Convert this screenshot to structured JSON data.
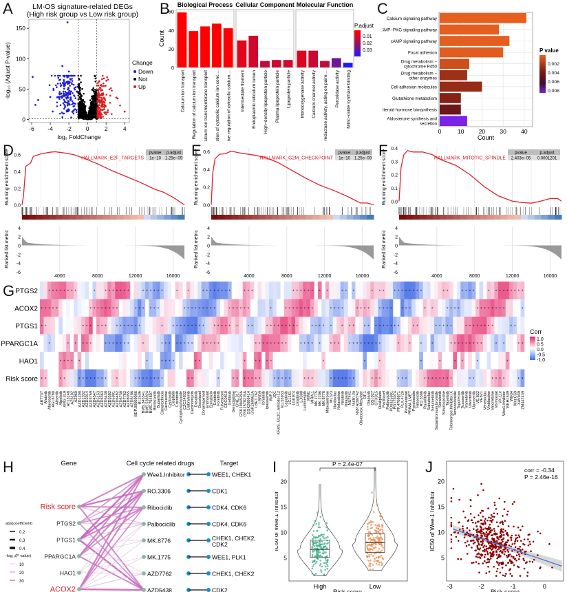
{
  "panel_labels": [
    "A",
    "B",
    "C",
    "D",
    "E",
    "F",
    "G",
    "H",
    "I",
    "J"
  ],
  "chart_data": [
    {
      "id": "A",
      "type": "scatter",
      "title": "LM-OS signature-related DEGs",
      "subtitle": "(High risk group vs Low risk group)",
      "xlabel": "log₂ FoldChange",
      "ylabel": "-log₁₀ (Adjust P-value)",
      "xlim": [
        -6.3,
        4.5
      ],
      "ylim": [
        -5,
        165
      ],
      "xticks": [
        -6,
        -4,
        -2,
        0,
        2,
        4
      ],
      "yticks": [
        0,
        50,
        100,
        150
      ],
      "thresholds": {
        "fc": [
          -1,
          1
        ],
        "p": 1.3
      },
      "legend": {
        "title": "Change",
        "position": "right",
        "entries": [
          {
            "label": "Down",
            "color": "#1f1fd6"
          },
          {
            "label": "Not",
            "color": "#000000"
          },
          {
            "label": "Up",
            "color": "#e01b1b"
          }
        ]
      },
      "outliers": [
        [
          -2.15,
          160
        ],
        [
          -2.7,
          88
        ],
        [
          -2.0,
          79
        ],
        [
          -5.9,
          70
        ],
        [
          -5.6,
          24
        ],
        [
          -5.3,
          32
        ],
        [
          -4.0,
          37
        ],
        [
          0.5,
          49
        ],
        [
          3.1,
          36
        ],
        [
          4.0,
          13
        ]
      ]
    },
    {
      "id": "B",
      "type": "bar",
      "ylabel": "Count",
      "ylim": [
        0,
        62
      ],
      "yticks": [
        0,
        20,
        40,
        60
      ],
      "legend": {
        "title": "P.adjust",
        "ticks": [
          "0.01",
          "0.02",
          "0.03"
        ],
        "low_color": "#ff0000",
        "high_color": "#1a1aff"
      },
      "facets": [
        {
          "name": "Biological Process",
          "categories": [
            "Calcium ion transport",
            "Regulation of calcium ion transport",
            "Calcium ion transmembrane transport",
            "Regulation of cytosolic calcium ion concentration",
            "Positive regulation of cytosolic calcium ion concentration"
          ],
          "values": [
            59,
            39,
            44,
            47,
            42
          ],
          "padj": [
            0.0005,
            0.0008,
            0.0006,
            0.0005,
            0.0007
          ]
        },
        {
          "name": "Cellular Component",
          "categories": [
            "Intermediate filament",
            "Endoplasmic reticulum lumen",
            "High−density lipoprotein particle",
            "Plasma lipoprotein particle",
            "Lipoprotein particle"
          ],
          "values": [
            29,
            34,
            7,
            8,
            8
          ],
          "padj": [
            0.006,
            0.009,
            0.012,
            0.009,
            0.009
          ]
        },
        {
          "name": "Molecular Function",
          "categories": [
            "Monooxygenase activity",
            "Calcium channel activity",
            "Oxidoreductase activity, acting on paired donors, with incorporation of molecular oxygen",
            "Peroxidase activity",
            "Nitric−oxide synthase binding"
          ],
          "values": [
            18,
            18,
            7,
            10,
            5
          ],
          "padj": [
            0.007,
            0.01,
            0.012,
            0.024,
            0.035
          ]
        }
      ]
    },
    {
      "id": "C",
      "type": "bar",
      "orientation": "horizontal",
      "xlabel": "Count",
      "xlim": [
        0,
        42
      ],
      "xticks": [
        0,
        10,
        20,
        30,
        40
      ],
      "legend": {
        "title": "P value",
        "ticks": [
          "0.002",
          "0.004",
          "0.006",
          "0.008"
        ]
      },
      "categories": [
        "Calcium signaling pathway",
        "cGMP−PKG signaling pathway",
        "cAMP signaling pathway",
        "Focal adhesion",
        "Drug metabolism − cytochrome P450",
        "Drug metabolism − other enzymes",
        "Cell adhesion molecules",
        "Glutathione metabolism",
        "Steroid hormone biosynthesis",
        "Aldosterone synthesis and secretion"
      ],
      "values": [
        41,
        28,
        33,
        30,
        14,
        13,
        20,
        10,
        10,
        13
      ],
      "pvalues": [
        0.0001,
        0.0002,
        0.0002,
        0.0003,
        0.0012,
        0.0032,
        0.0035,
        0.0042,
        0.0052,
        0.0085
      ]
    },
    {
      "id": "D",
      "type": "line",
      "gene_set": "HALLMARK_E2F_TARGETS",
      "pvalue": "1e−10",
      "p_adjust": "1.25e−09",
      "ylabel": "Running enrichment score",
      "ylabel2": "Ranked list metric",
      "xlabel": "Rank in ordered dataset",
      "ylim": [
        -0.02,
        0.68
      ],
      "yticks": [
        0.0,
        0.2,
        0.4,
        0.6
      ],
      "xticks": [
        4000,
        8000,
        12000,
        16000
      ],
      "xlim": [
        0,
        17200
      ],
      "metric_yticks": [
        4,
        2,
        0,
        -2,
        -4,
        -6
      ],
      "curve": [
        [
          0,
          0
        ],
        [
          150,
          0.1
        ],
        [
          400,
          0.46
        ],
        [
          900,
          0.5
        ],
        [
          1200,
          0.58
        ],
        [
          2000,
          0.61
        ],
        [
          3000,
          0.63
        ],
        [
          3500,
          0.635
        ],
        [
          4500,
          0.62
        ],
        [
          5500,
          0.6
        ],
        [
          6500,
          0.56
        ],
        [
          8000,
          0.49
        ],
        [
          9500,
          0.41
        ],
        [
          11000,
          0.34
        ],
        [
          12500,
          0.27
        ],
        [
          14000,
          0.19
        ],
        [
          15000,
          0.15
        ],
        [
          16000,
          0.09
        ],
        [
          17200,
          0.0
        ]
      ]
    },
    {
      "id": "E",
      "type": "line",
      "gene_set": "HALLMARK_G2M_CHECKPOINT",
      "pvalue": "1e−10",
      "p_adjust": "1.25e−09",
      "ylabel": "Running enrichment score",
      "ylabel2": "Ranked list metric",
      "xlabel": "Rank in ordered dataset",
      "ylim": [
        -0.02,
        0.64
      ],
      "yticks": [
        0.0,
        0.2,
        0.4,
        0.6
      ],
      "xticks": [
        4000,
        8000,
        12000,
        16000
      ],
      "xlim": [
        0,
        17200
      ],
      "metric_yticks": [
        4,
        2,
        0,
        -2,
        -4,
        -6
      ],
      "curve": [
        [
          0,
          0
        ],
        [
          150,
          0.35
        ],
        [
          400,
          0.52
        ],
        [
          900,
          0.57
        ],
        [
          1500,
          0.575
        ],
        [
          2100,
          0.605
        ],
        [
          3000,
          0.585
        ],
        [
          4500,
          0.56
        ],
        [
          5500,
          0.54
        ],
        [
          7000,
          0.48
        ],
        [
          8500,
          0.39
        ],
        [
          10000,
          0.3
        ],
        [
          11500,
          0.22
        ],
        [
          13000,
          0.16
        ],
        [
          14500,
          0.09
        ],
        [
          15800,
          0.02
        ],
        [
          16500,
          0.02
        ],
        [
          17200,
          0.0
        ]
      ]
    },
    {
      "id": "F",
      "type": "line",
      "gene_set": "HALLMARK_MITOTIC_SPINDLE",
      "pvalue": "2.403e−05",
      "p_adjust": "0.0001201",
      "ylabel": "Running enrichment score",
      "ylabel2": "Ranked list metric",
      "xlabel": "Rank in ordered dataset",
      "ylim": [
        -0.04,
        0.4
      ],
      "yticks": [
        0.0,
        0.1,
        0.2,
        0.3,
        0.4
      ],
      "xticks": [
        4000,
        8000,
        12000,
        16000
      ],
      "xlim": [
        0,
        17200
      ],
      "metric_yticks": [
        4,
        2,
        0,
        -2,
        -4,
        -6
      ],
      "curve": [
        [
          0,
          0
        ],
        [
          200,
          0.25
        ],
        [
          500,
          0.35
        ],
        [
          900,
          0.38
        ],
        [
          1500,
          0.37
        ],
        [
          2500,
          0.37
        ],
        [
          3500,
          0.35
        ],
        [
          4500,
          0.31
        ],
        [
          6000,
          0.27
        ],
        [
          7500,
          0.2
        ],
        [
          9000,
          0.11
        ],
        [
          10500,
          0.04
        ],
        [
          12000,
          0.0
        ],
        [
          13000,
          -0.01
        ],
        [
          14000,
          -0.015
        ],
        [
          15000,
          0.0
        ],
        [
          16000,
          0.02
        ],
        [
          16800,
          0.02
        ],
        [
          17200,
          0.0
        ]
      ]
    },
    {
      "id": "G",
      "type": "heatmap",
      "rows": [
        "PTGS2",
        "ACOX2",
        "PTGS1",
        "PPARGC1A",
        "HAO1",
        "Risk score"
      ],
      "legend": {
        "title": "Corr",
        "ticks": [
          "1.0",
          "0.5",
          "0.0",
          "-0.5",
          "-1.0"
        ]
      },
      "columns": [
        "ABT737",
        "Afatinib",
        "Afuresertib",
        "AGI.6780",
        "Alisertib",
        "Alpelisib",
        "AMG.319",
        "AT13148",
        "AZ6102",
        "AZ960",
        "AZD1208",
        "AZD1332",
        "AZD2014",
        "AZD3759",
        "AZD4547",
        "AZD5153",
        "AZD5363",
        "AZD5438",
        "AZD5582",
        "AZD5991",
        "AZD6482",
        "AZD6738",
        "AZD7762",
        "AZD8055",
        "AZD8186",
        "BDP.00009066",
        "BI.2536",
        "BMS.345541",
        "BMS.536924",
        "BMS.754807",
        "Bortezomib",
        "Buparlisib",
        "Camptothecin",
        "Carmustine",
        "Cediranib",
        "Cisplatin",
        "Crizotinib",
        "Cyclophosphamide",
        "CZC24832",
        "Dabrafenib",
        "Dactinomycin",
        "Dasatinib",
        "Docetaxel",
        "Doramapimod",
        "Entinostat",
        "Epirubicin",
        "Erlotinib",
        "Foretinib",
        "Fulvestrant",
        "GDC0810",
        "Gefitinib",
        "Gemcitabine",
        "GNE.317",
        "GSK1904529A",
        "GSK2578215A",
        "GSK2606414",
        "GSK269962A",
        "I.BET.762",
        "I.BRD9",
        "Ibrutinib",
        "Ipatasertib",
        "IWP.2",
        "JQ1",
        "KRAS..G12C..Inhibitor.12",
        "KU.55933",
        "Lapatinib",
        "LCL161",
        "LGK974",
        "Linsitinib",
        "LJI308",
        "Luminespib",
        "MIM1",
        "MIRA.1",
        "MK.1775",
        "MK.2206",
        "MK.8776",
        "Mitoxantrone",
        "ML323",
        "Navitoclax",
        "Nelarabine",
        "Nilotinib",
        "Niraparib",
        "NU7441",
        "Nutlin.3a",
        "NVP.ADW742",
        "Obatoclax.Mesylate",
        "OF.1",
        "Olaparib",
        "OSI.027",
        "OTX015",
        "Oxaliplatin",
        "Paclitaxel",
        "Palbociclib",
        "PD0325901",
        "PD173074",
        "PF.4708671",
        "PLX.4720",
        "Pevonedistat",
        "PRIMA.1MET",
        "Pyridostatin",
        "Ribociclib",
        "RO.3306",
        "Ruxolitinib",
        "Sabutoclax",
        "Selumetinib",
        "Sepantronium.bromide",
        "Sorafenib",
        "Staurosporine",
        "Taselisib",
        "Telomerase.Inhibitor.IX",
        "Temozolomide",
        "Topotecan",
        "Tozasertib",
        "Trametinib",
        "Ulixertinib",
        "Uprosertib",
        "VE.822",
        "VE821",
        "Venetoclax",
        "Vinblastine",
        "Vinorelbine",
        "Vorinostat",
        "VX.11e",
        "Wee1.Inhibitor",
        "WEHI.539",
        "WIKI4",
        "Wnt.C59",
        "XAV939",
        "ZM447439"
      ]
    },
    {
      "id": "I",
      "type": "box",
      "title": "P = 2.4e-07",
      "xlabel": "Risk score",
      "ylabel": "IC50 of Wee.1 Inhibitor",
      "categories": [
        "High",
        "Low"
      ],
      "colors": [
        "#3fae8a",
        "#e8884a"
      ],
      "ylim": [
        0.5,
        24
      ],
      "yticks": [
        5,
        10,
        15,
        20
      ],
      "box": [
        {
          "group": "High",
          "min": 1.5,
          "q1": 5.1,
          "median": 6.7,
          "q3": 8.5,
          "max": 19.4
        },
        {
          "group": "Low",
          "min": 2.6,
          "q1": 6.1,
          "median": 8.0,
          "q3": 9.8,
          "max": 22.7
        }
      ]
    },
    {
      "id": "J",
      "type": "scatter",
      "xlabel": "Risk score",
      "ylabel": "IC50 of Wee.1 Inhibitor",
      "annotation": [
        "corr = -0.34",
        "P = 2.46e-16"
      ],
      "xlim": [
        -3.1,
        0.6
      ],
      "ylim": [
        0.5,
        24
      ],
      "xticks": [
        -3,
        -2,
        -1,
        0
      ],
      "yticks": [
        5,
        10,
        15,
        20
      ],
      "fit": {
        "x": [
          -2.9,
          0.55
        ],
        "y": [
          10.7,
          3.4
        ]
      },
      "point_color": "#8b0000",
      "line_color": "#4a6fd4"
    }
  ],
  "network_H": {
    "headers": {
      "gene": "Gene",
      "drugs": "Cell cycle related drugs",
      "target": "Target"
    },
    "genes": [
      {
        "name": "Risk score",
        "highlight": true
      },
      {
        "name": "PTGS2",
        "highlight": false
      },
      {
        "name": "PTGS1",
        "highlight": false
      },
      {
        "name": "PPARGC1A",
        "highlight": false
      },
      {
        "name": "HAO1",
        "highlight": false
      },
      {
        "name": "ACOX2",
        "highlight": true
      }
    ],
    "drugs": [
      "Wee1.Inhibitor",
      "RO.3306",
      "Ribociclib",
      "Palbociclib",
      "MK.8776",
      "MK.1775",
      "AZD7762",
      "AZD5438"
    ],
    "targets": [
      "WEE1, CHEK1",
      "CDK1",
      "CDK4, CDK6",
      "CDK4, CDK6",
      "CHEK1, CHEK2, CDK2",
      "WEE1, PLK1",
      "CHEK1, CHEK2",
      "CDK2"
    ],
    "legend": {
      "coef_title": "abs(coefficient)",
      "coef_ticks": [
        "0.2",
        "0.3",
        "0.4"
      ],
      "p_title": "-log₁₀(P value)",
      "p_ticks": [
        "10",
        "20",
        "30"
      ]
    },
    "edges": [
      [
        0,
        0,
        0.35,
        25
      ],
      [
        0,
        1,
        0.4,
        28
      ],
      [
        0,
        2,
        0.35,
        25
      ],
      [
        0,
        3,
        0.2,
        10
      ],
      [
        0,
        7,
        0.35,
        24
      ],
      [
        1,
        0,
        0.3,
        18
      ],
      [
        1,
        1,
        0.25,
        14
      ],
      [
        1,
        2,
        0.3,
        20
      ],
      [
        1,
        3,
        0.2,
        8
      ],
      [
        1,
        7,
        0.3,
        20
      ],
      [
        2,
        0,
        0.4,
        30
      ],
      [
        2,
        1,
        0.4,
        30
      ],
      [
        2,
        2,
        0.35,
        26
      ],
      [
        2,
        3,
        0.2,
        8
      ],
      [
        2,
        4,
        0.15,
        5
      ],
      [
        2,
        6,
        0.15,
        5
      ],
      [
        2,
        7,
        0.4,
        30
      ],
      [
        3,
        0,
        0.35,
        24
      ],
      [
        3,
        1,
        0.35,
        24
      ],
      [
        3,
        2,
        0.3,
        22
      ],
      [
        3,
        4,
        0.15,
        6
      ],
      [
        3,
        7,
        0.35,
        24
      ],
      [
        4,
        1,
        0.15,
        6
      ],
      [
        4,
        3,
        0.15,
        5
      ],
      [
        4,
        5,
        0.15,
        5
      ],
      [
        4,
        6,
        0.15,
        5
      ],
      [
        5,
        0,
        0.35,
        26
      ],
      [
        5,
        1,
        0.35,
        26
      ],
      [
        5,
        2,
        0.3,
        22
      ],
      [
        5,
        3,
        0.15,
        5
      ],
      [
        5,
        4,
        0.15,
        6
      ],
      [
        5,
        5,
        0.15,
        6
      ],
      [
        5,
        6,
        0.2,
        8
      ],
      [
        5,
        7,
        0.4,
        30
      ]
    ]
  }
}
